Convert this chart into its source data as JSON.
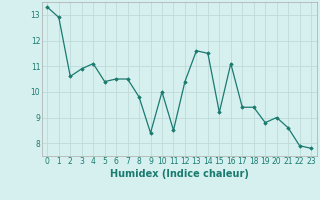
{
  "x": [
    0,
    1,
    2,
    3,
    4,
    5,
    6,
    7,
    8,
    9,
    10,
    11,
    12,
    13,
    14,
    15,
    16,
    17,
    18,
    19,
    20,
    21,
    22,
    23
  ],
  "y": [
    13.3,
    12.9,
    10.6,
    10.9,
    11.1,
    10.4,
    10.5,
    10.5,
    9.8,
    8.4,
    10.0,
    8.5,
    10.4,
    11.6,
    11.5,
    9.2,
    11.1,
    9.4,
    9.4,
    8.8,
    9.0,
    8.6,
    7.9,
    7.8
  ],
  "xlabel": "Humidex (Indice chaleur)",
  "ylim": [
    7.5,
    13.5
  ],
  "xlim": [
    -0.5,
    23.5
  ],
  "yticks": [
    8,
    9,
    10,
    11,
    12,
    13
  ],
  "xticks": [
    0,
    1,
    2,
    3,
    4,
    5,
    6,
    7,
    8,
    9,
    10,
    11,
    12,
    13,
    14,
    15,
    16,
    17,
    18,
    19,
    20,
    21,
    22,
    23
  ],
  "line_color": "#1a7a6e",
  "marker": "D",
  "marker_size": 1.8,
  "bg_color": "#d6f0f0",
  "grid_color": "#c0dada",
  "tick_label_fontsize": 5.5,
  "xlabel_fontsize": 7.0
}
